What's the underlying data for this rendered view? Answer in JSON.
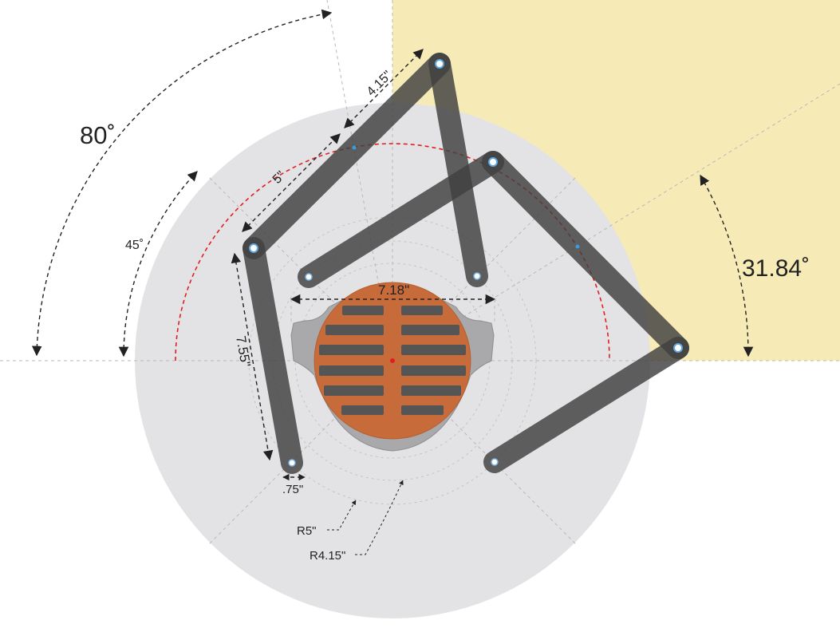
{
  "colors": {
    "background": "#ffffff",
    "wall_region": "#f6ebb6",
    "base_disc": "#e3e3e5",
    "link": "#3f3f3f",
    "grate": "#c76b3a",
    "grate_slot": "#545454",
    "flange": "#a9a9ab",
    "arc_red": "#e02020",
    "dimension": "#222222"
  },
  "dimensions": {
    "angle_80": "80˚",
    "angle_45": "45˚",
    "angle_31_84": "31.84˚",
    "link_top_length": "4.15\"",
    "link_diag_length": "5\"",
    "link_left_length": "7.55\"",
    "grate_width": "7.18\"",
    "link_width": ".75\"",
    "radius_outer": "R5\"",
    "radius_inner": "R4.15\""
  },
  "icons": {
    "pivot": "pivot-pin-icon",
    "grate": "drain-grate-icon"
  }
}
